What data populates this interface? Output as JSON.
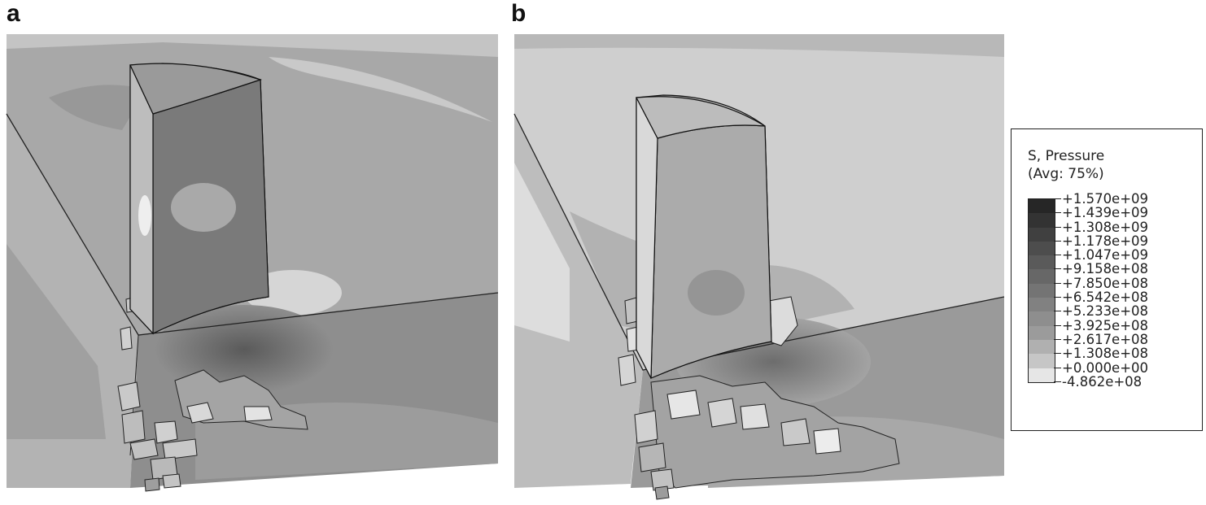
{
  "panels": [
    {
      "label": "a"
    },
    {
      "label": "b"
    }
  ],
  "legend": {
    "title_line1": "S, Pressure",
    "title_line2": "(Avg: 75%)",
    "values": [
      "+1.570e+09",
      "+1.439e+09",
      "+1.308e+09",
      "+1.178e+09",
      "+1.047e+09",
      "+9.158e+08",
      "+7.850e+08",
      "+6.542e+08",
      "+5.233e+08",
      "+3.925e+08",
      "+2.617e+08",
      "+1.308e+08",
      "+0.000e+00",
      "-4.862e+08"
    ],
    "colors": [
      "#262626",
      "#333333",
      "#404040",
      "#4d4d4d",
      "#5a5a5a",
      "#676767",
      "#747474",
      "#818181",
      "#8e8e8e",
      "#9b9b9b",
      "#b0b0b0",
      "#c6c6c6",
      "#e6e6e6"
    ]
  }
}
